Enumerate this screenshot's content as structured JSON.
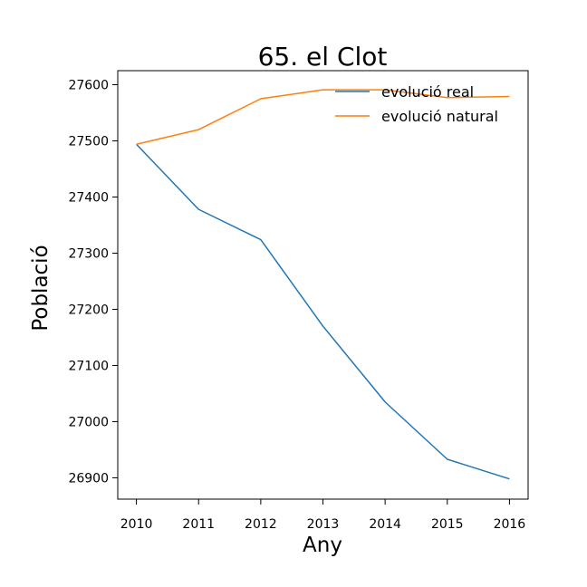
{
  "chart_data": {
    "type": "line",
    "title": "65. el Clot",
    "xlabel": "Any",
    "ylabel": "Població",
    "x": [
      2010,
      2011,
      2012,
      2013,
      2014,
      2015,
      2016
    ],
    "x_ticks": [
      "2010",
      "2011",
      "2012",
      "2013",
      "2014",
      "2015",
      "2016"
    ],
    "y_ticks": [
      "26900",
      "27000",
      "27100",
      "27200",
      "27300",
      "27400",
      "27500",
      "27600"
    ],
    "y_tick_values": [
      26900,
      27000,
      27100,
      27200,
      27300,
      27400,
      27500,
      27600
    ],
    "xlim": [
      2009.7,
      2016.3
    ],
    "ylim": [
      26862,
      27625
    ],
    "grid": false,
    "legend_position": "top-right",
    "series": [
      {
        "name": "evolució real",
        "color": "#1f77b4",
        "values": [
          27494,
          27378,
          27324,
          27170,
          27035,
          26933,
          26898
        ]
      },
      {
        "name": "evolució natural",
        "color": "#ff7f0e",
        "values": [
          27494,
          27520,
          27575,
          27591,
          27591,
          27577,
          27579
        ]
      }
    ]
  }
}
